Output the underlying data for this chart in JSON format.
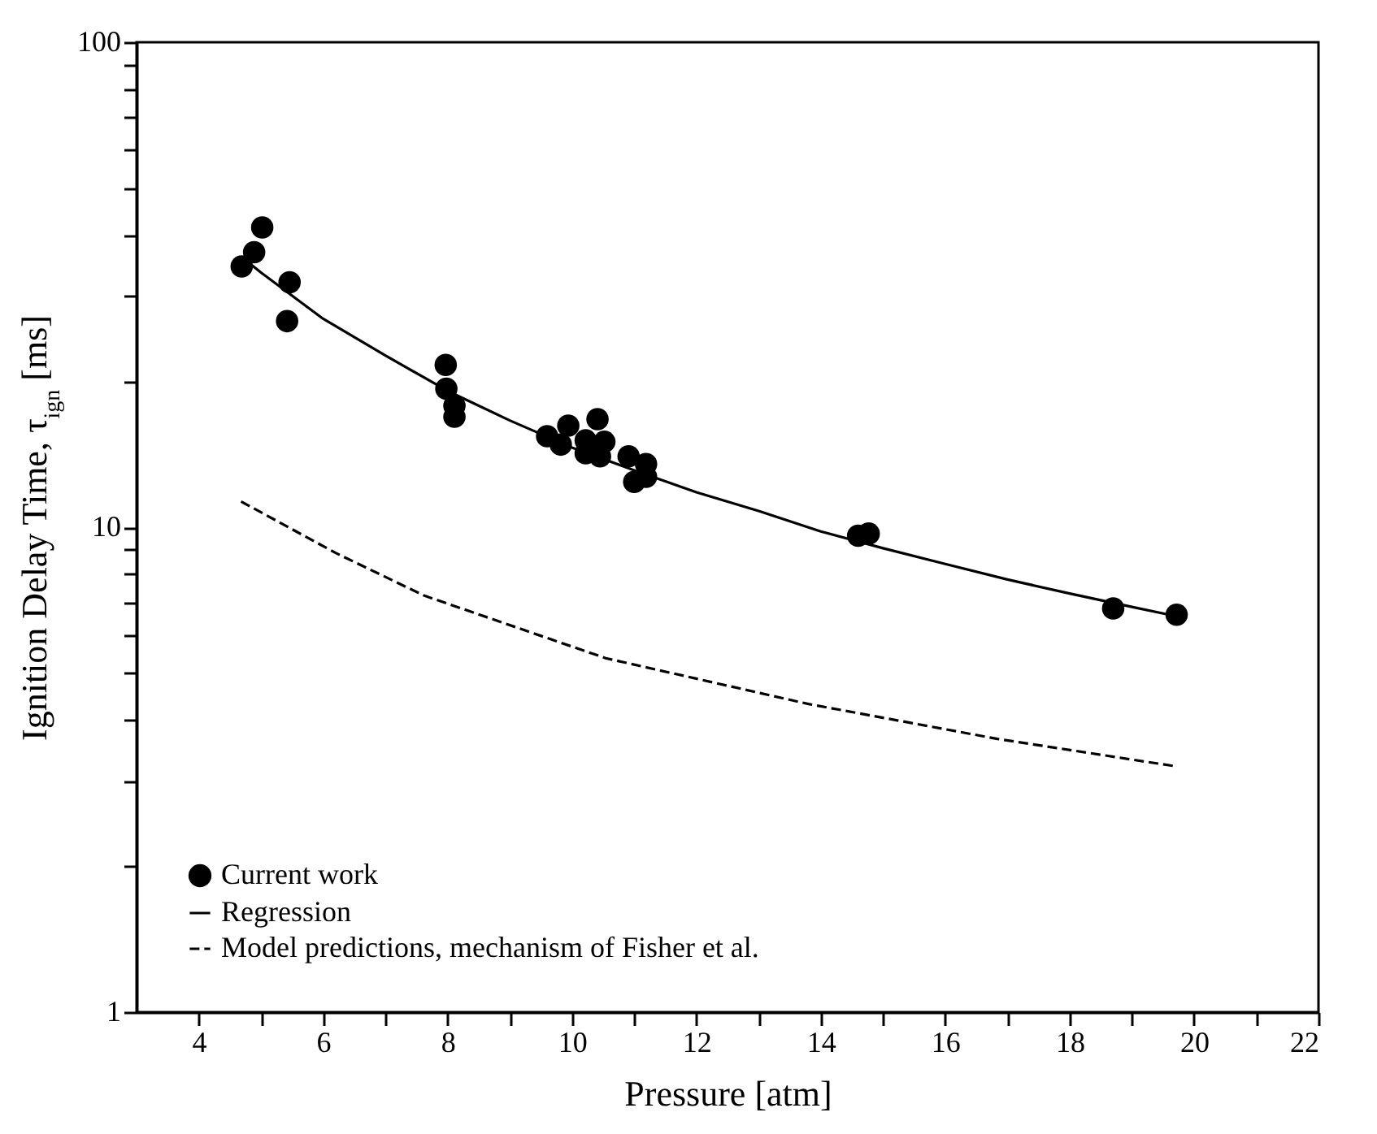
{
  "chart_data": {
    "type": "scatter",
    "xlabel": "Pressure [atm]",
    "ylabel": "Ignition Delay Time, τ$_{ign}$ [ms]",
    "log": "y",
    "grid": false,
    "legend": "bottom left",
    "xlim": [
      3,
      22
    ],
    "ylim": [
      1,
      100
    ],
    "xticks": [
      4,
      {
        "value": 5,
        "label": null
      },
      6,
      {
        "value": 7,
        "label": null
      },
      8,
      {
        "value": 9,
        "label": null
      },
      10,
      {
        "value": 11,
        "label": null
      },
      12,
      {
        "value": 13,
        "label": null
      },
      14,
      {
        "value": 15,
        "label": null
      },
      16,
      {
        "value": 17,
        "label": null
      },
      18,
      {
        "value": 19,
        "label": null
      },
      20,
      {
        "value": 21,
        "label": null
      },
      22
    ],
    "yticks": [
      1,
      {
        "value": 2,
        "label": null
      },
      {
        "value": 3,
        "label": null
      },
      {
        "value": 4,
        "label": null
      },
      {
        "value": 5,
        "label": null
      },
      {
        "value": 6,
        "label": null
      },
      {
        "value": 7,
        "label": null
      },
      {
        "value": 8,
        "label": null
      },
      {
        "value": 9,
        "label": null
      },
      10,
      {
        "value": 20,
        "label": null
      },
      {
        "value": 30,
        "label": null
      },
      {
        "value": 40,
        "label": null
      },
      {
        "value": 50,
        "label": null
      },
      {
        "value": 60,
        "label": null
      },
      {
        "value": 70,
        "label": null
      },
      {
        "value": 80,
        "label": null
      },
      {
        "value": 90,
        "label": null
      },
      100
    ],
    "series": [
      {
        "name": "Current work",
        "type": "scatter",
        "marker": "circle",
        "color": "#000000",
        "x": [
          4.69,
          4.89,
          5.02,
          5.46,
          5.42,
          7.97,
          7.98,
          8.11,
          8.11,
          9.6,
          9.82,
          9.94,
          10.22,
          10.22,
          10.41,
          10.52,
          10.45,
          10.91,
          11.19,
          11.19,
          11.0,
          14.6,
          14.77,
          18.7,
          19.72
        ],
        "values": [
          34.5,
          36.9,
          41.5,
          32.0,
          26.6,
          21.6,
          19.3,
          17.8,
          16.9,
          15.4,
          14.8,
          16.2,
          15.1,
          14.2,
          16.7,
          15.0,
          14.0,
          14.0,
          13.5,
          12.7,
          12.4,
          9.6,
          9.7,
          6.8,
          6.6
        ]
      },
      {
        "name": "Regression",
        "type": "line",
        "marker": "none",
        "line_style": "solid",
        "color": "#000000",
        "x": [
          4.7,
          5,
          6,
          7,
          8,
          9,
          10,
          11,
          12,
          13,
          14,
          15,
          16,
          17,
          18,
          19,
          19.6
        ],
        "values": [
          36,
          33.5,
          26.9,
          22.6,
          19.1,
          16.6,
          14.6,
          13.1,
          11.8,
          10.8,
          9.8,
          9.05,
          8.4,
          7.8,
          7.3,
          6.85,
          6.6
        ]
      },
      {
        "name": "Model predictions, mechanism of Fisher et al.",
        "type": "line",
        "marker": "none",
        "line_style": "dashed",
        "color": "#000000",
        "x": [
          4.68,
          6.2,
          7.62,
          10.54,
          13.8,
          16.84,
          19.66
        ],
        "values": [
          11.3,
          8.85,
          7.23,
          5.37,
          4.32,
          3.66,
          3.22
        ]
      }
    ]
  }
}
